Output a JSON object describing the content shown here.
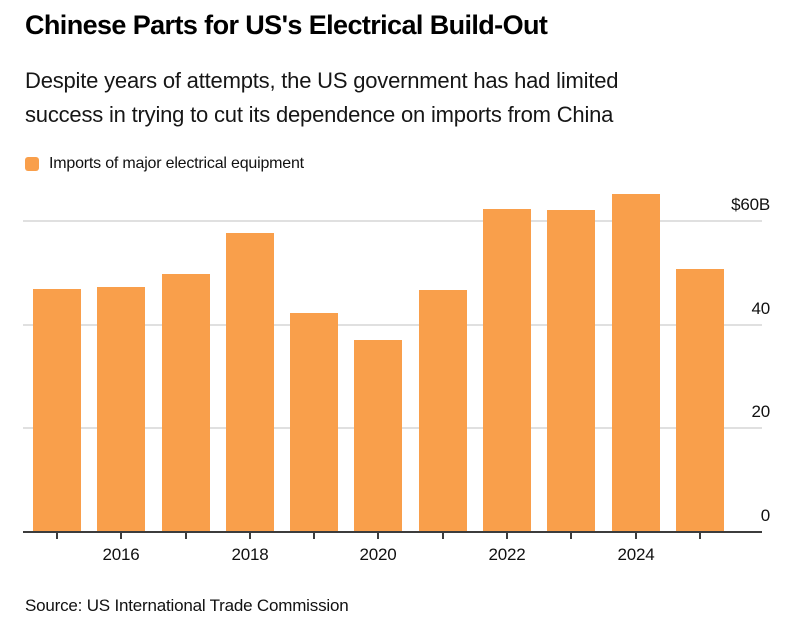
{
  "header": {
    "title": "Chinese Parts for US's Electrical Build-Out",
    "subtitle_line1": "Despite years of attempts, the US government has had limited",
    "subtitle_line2": "success in trying to cut its dependence on imports from China"
  },
  "legend": {
    "label": "Imports of major electrical equipment"
  },
  "chart_data": {
    "type": "bar",
    "title": "Chinese Parts for US's Electrical Build-Out",
    "subtitle": "Despite years of attempts, the US government has had limited success in trying to cut its dependence on imports from China",
    "series_name": "Imports of major electrical equipment",
    "unit": "USD billions",
    "categories": [
      "2015",
      "2016",
      "2017",
      "2018",
      "2019",
      "2020",
      "2021",
      "2022",
      "2023",
      "2024",
      "2025"
    ],
    "values": [
      46.8,
      47.2,
      49.7,
      57.6,
      42.2,
      37.1,
      46.7,
      62.4,
      62.1,
      65.2,
      50.7
    ],
    "bar_color": "#f99f4b",
    "grid_color": "#e0e0e0",
    "axis_color": "#3c3c3c",
    "grid": true,
    "legend_position": "top-left",
    "ylim": [
      0,
      68
    ],
    "y_axis": {
      "side": "right",
      "ticks": [
        {
          "value": 60,
          "label": "$60B"
        },
        {
          "value": 40,
          "label": "40"
        },
        {
          "value": 20,
          "label": "20"
        },
        {
          "value": 0,
          "label": "0"
        }
      ],
      "gridline_values": [
        60,
        40,
        20
      ]
    },
    "x_axis": {
      "tick_per_bar": true,
      "labels": [
        {
          "label": "2016",
          "bar_index": 1
        },
        {
          "label": "2018",
          "bar_index": 3
        },
        {
          "label": "2020",
          "bar_index": 5
        },
        {
          "label": "2022",
          "bar_index": 7
        },
        {
          "label": "2024",
          "bar_index": 9
        }
      ]
    }
  },
  "footer": {
    "source": "Source: US International Trade Commission"
  }
}
